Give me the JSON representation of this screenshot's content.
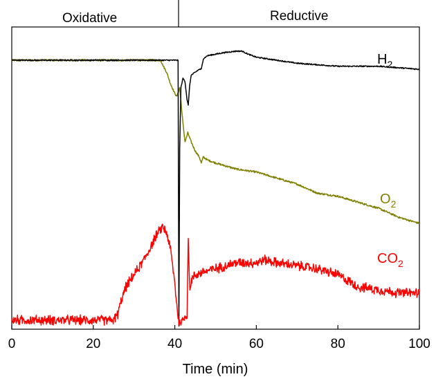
{
  "chart_data": {
    "type": "line",
    "title": "",
    "xlabel": "Time (min)",
    "ylabel": "",
    "xlim": [
      0,
      100
    ],
    "ylim": [
      0,
      1
    ],
    "x_ticks": [
      0,
      20,
      40,
      60,
      80,
      100
    ],
    "grid": false,
    "y_axis_labels": false,
    "regions": [
      {
        "label": "Oxidative",
        "x_range": [
          0,
          41
        ]
      },
      {
        "label": "Reductive",
        "x_range": [
          41,
          100
        ]
      }
    ],
    "series": [
      {
        "name": "H2",
        "label_main": "H",
        "label_sub": "2",
        "color": "#000000",
        "noise": 0.002,
        "x": [
          0,
          36.5,
          37,
          38,
          39,
          40,
          40.8,
          41,
          41.2,
          41.5,
          42,
          42.5,
          43,
          43.3,
          43.6,
          44,
          45,
          46,
          46.5,
          47,
          48,
          50,
          52,
          55,
          56.5,
          58,
          60,
          65,
          70,
          75,
          80,
          85,
          90,
          95,
          100
        ],
        "y": [
          0.89,
          0.89,
          0.89,
          0.89,
          0.89,
          0.89,
          0.89,
          0.01,
          0.6,
          0.8,
          0.83,
          0.82,
          0.76,
          0.74,
          0.8,
          0.84,
          0.85,
          0.86,
          0.86,
          0.895,
          0.905,
          0.91,
          0.915,
          0.92,
          0.92,
          0.91,
          0.9,
          0.89,
          0.88,
          0.875,
          0.87,
          0.87,
          0.87,
          0.865,
          0.86
        ]
      },
      {
        "name": "O2",
        "label_main": "O",
        "label_sub": "2",
        "color": "#808000",
        "noise": 0.003,
        "x": [
          0,
          36.5,
          37.2,
          38,
          39,
          40,
          40.5,
          41.2,
          42,
          42.5,
          43.2,
          44,
          45,
          46,
          46.5,
          47,
          48,
          50,
          55,
          60,
          65,
          70,
          75,
          80,
          85,
          90,
          95,
          100
        ],
        "y": [
          0.89,
          0.89,
          0.87,
          0.85,
          0.81,
          0.78,
          0.77,
          0.8,
          0.68,
          0.62,
          0.65,
          0.62,
          0.59,
          0.57,
          0.55,
          0.57,
          0.56,
          0.55,
          0.53,
          0.52,
          0.5,
          0.48,
          0.45,
          0.44,
          0.42,
          0.4,
          0.37,
          0.35
        ]
      },
      {
        "name": "CO2",
        "label_main": "CO",
        "label_sub": "2",
        "color": "#ff0000",
        "noise": 0.012,
        "x": [
          0,
          5,
          10,
          15,
          20,
          25,
          26,
          27,
          28,
          30,
          32,
          34,
          35,
          36,
          37,
          38,
          39,
          40,
          40.5,
          41,
          42,
          43,
          43.3,
          43.7,
          44,
          45,
          47,
          50,
          55,
          60,
          62,
          65,
          70,
          75,
          80,
          85,
          90,
          95,
          100
        ],
        "y": [
          0.03,
          0.03,
          0.03,
          0.03,
          0.03,
          0.03,
          0.05,
          0.1,
          0.14,
          0.18,
          0.22,
          0.27,
          0.3,
          0.32,
          0.34,
          0.32,
          0.26,
          0.15,
          0.08,
          0.02,
          0.03,
          0.05,
          0.3,
          0.12,
          0.16,
          0.18,
          0.19,
          0.2,
          0.22,
          0.22,
          0.23,
          0.22,
          0.21,
          0.2,
          0.18,
          0.14,
          0.13,
          0.12,
          0.12
        ]
      }
    ]
  }
}
